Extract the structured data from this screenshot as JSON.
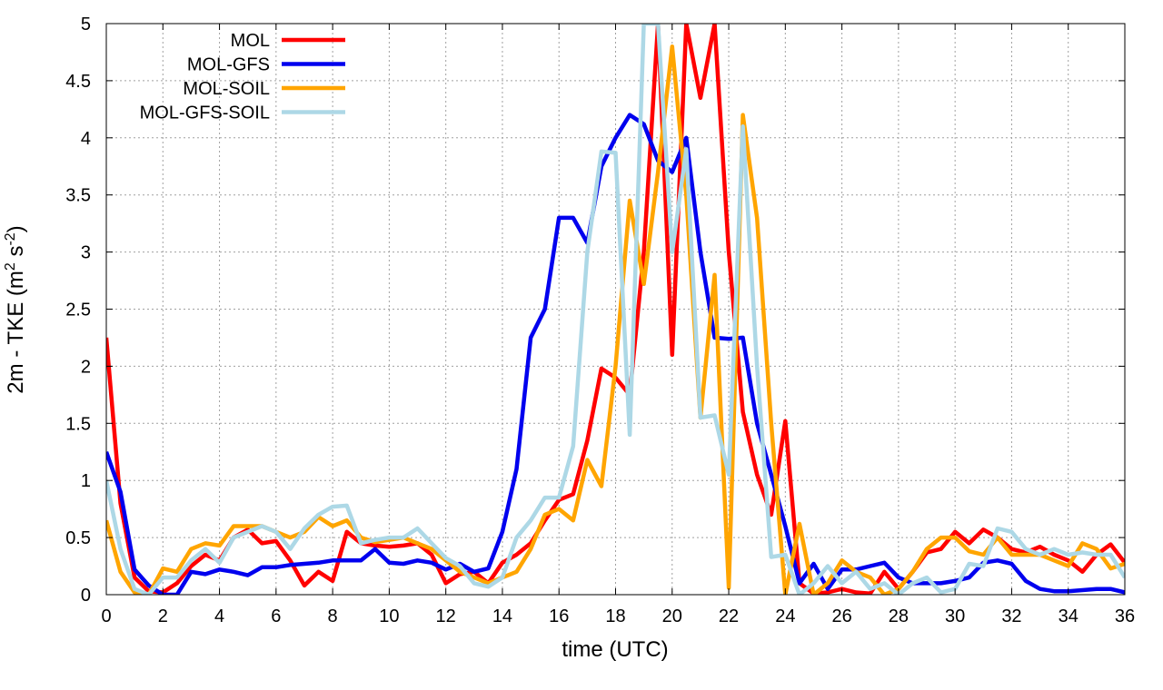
{
  "chart_data": {
    "type": "line",
    "title": "",
    "xlabel": "time (UTC)",
    "ylabel_prefix": "2m - TKE (m",
    "ylabel_sup1": "2",
    "ylabel_mid": " s",
    "ylabel_sup2": "-2",
    "ylabel_suffix": ")",
    "xlim": [
      0,
      36
    ],
    "ylim": [
      0,
      5
    ],
    "xticks": [
      0,
      2,
      4,
      6,
      8,
      10,
      12,
      14,
      16,
      18,
      20,
      22,
      24,
      26,
      28,
      30,
      32,
      34,
      36
    ],
    "yticks": [
      0,
      0.5,
      1,
      1.5,
      2,
      2.5,
      3,
      3.5,
      4,
      4.5,
      5
    ],
    "ytick_labels": [
      "0",
      "0.5",
      "1",
      "1.5",
      "2",
      "2.5",
      "3",
      "3.5",
      "4",
      "4.5",
      "5"
    ],
    "grid": true,
    "legend_position": "top-left",
    "series": [
      {
        "name": "MOL",
        "color": "#ff0000",
        "x": [
          0,
          0.5,
          1,
          1.5,
          2,
          2.5,
          3,
          3.5,
          4,
          4.5,
          5,
          5.5,
          6,
          6.5,
          7,
          7.5,
          8,
          8.5,
          9,
          9.5,
          10,
          10.5,
          11,
          11.5,
          12,
          12.5,
          13,
          13.5,
          14,
          14.5,
          15,
          15.5,
          16,
          16.5,
          17,
          17.5,
          18,
          18.5,
          19,
          19.5,
          20,
          20.5,
          21,
          21.5,
          22,
          22.5,
          23,
          23.5,
          24,
          24.5,
          25,
          25.5,
          26,
          26.5,
          27,
          27.5,
          28,
          28.5,
          29,
          29.5,
          30,
          30.5,
          31,
          31.5,
          32,
          32.5,
          33,
          33.5,
          34,
          34.5,
          35,
          35.5,
          36
        ],
        "values": [
          2.25,
          0.8,
          0.15,
          0.03,
          0.02,
          0.1,
          0.25,
          0.35,
          0.3,
          0.5,
          0.57,
          0.45,
          0.47,
          0.3,
          0.08,
          0.2,
          0.12,
          0.55,
          0.45,
          0.43,
          0.42,
          0.43,
          0.45,
          0.35,
          0.1,
          0.18,
          0.2,
          0.1,
          0.28,
          0.35,
          0.45,
          0.65,
          0.83,
          0.88,
          1.35,
          1.98,
          1.9,
          1.75,
          3.0,
          5.0,
          2.1,
          5.0,
          4.35,
          5.0,
          3.0,
          1.6,
          1.05,
          0.7,
          1.52,
          0.1,
          0.01,
          0.02,
          0.05,
          0.02,
          0.01,
          0.2,
          0.05,
          0.2,
          0.37,
          0.4,
          0.55,
          0.45,
          0.57,
          0.5,
          0.4,
          0.37,
          0.42,
          0.35,
          0.3,
          0.2,
          0.35,
          0.44,
          0.28
        ]
      },
      {
        "name": "MOL-GFS",
        "color": "#0000ee",
        "x": [
          0,
          0.5,
          1,
          1.5,
          2,
          2.5,
          3,
          3.5,
          4,
          4.5,
          5,
          5.5,
          6,
          6.5,
          7,
          7.5,
          8,
          8.5,
          9,
          9.5,
          10,
          10.5,
          11,
          11.5,
          12,
          12.5,
          13,
          13.5,
          14,
          14.5,
          15,
          15.5,
          16,
          16.5,
          17,
          17.5,
          18,
          18.5,
          19,
          19.5,
          20,
          20.5,
          21,
          21.5,
          22,
          22.5,
          23,
          23.5,
          24,
          24.5,
          25,
          25.5,
          26,
          26.5,
          27,
          27.5,
          28,
          28.5,
          29,
          29.5,
          30,
          30.5,
          31,
          31.5,
          32,
          32.5,
          33,
          33.5,
          34,
          34.5,
          35,
          35.5,
          36
        ],
        "values": [
          1.25,
          0.9,
          0.22,
          0.08,
          0.0,
          0.0,
          0.2,
          0.18,
          0.22,
          0.2,
          0.17,
          0.24,
          0.24,
          0.26,
          0.27,
          0.28,
          0.3,
          0.3,
          0.3,
          0.4,
          0.28,
          0.27,
          0.3,
          0.28,
          0.22,
          0.27,
          0.2,
          0.23,
          0.55,
          1.1,
          2.25,
          2.5,
          3.3,
          3.3,
          3.08,
          3.75,
          4.0,
          4.2,
          4.12,
          3.8,
          3.7,
          4.0,
          3.0,
          2.25,
          2.24,
          2.25,
          1.5,
          1.05,
          0.6,
          0.1,
          0.27,
          0.05,
          0.22,
          0.22,
          0.25,
          0.28,
          0.15,
          0.1,
          0.1,
          0.1,
          0.12,
          0.15,
          0.28,
          0.3,
          0.27,
          0.12,
          0.05,
          0.03,
          0.03,
          0.04,
          0.05,
          0.05,
          0.02
        ]
      },
      {
        "name": "MOL-SOIL",
        "color": "#ffa500",
        "x": [
          0,
          0.5,
          1,
          1.5,
          2,
          2.5,
          3,
          3.5,
          4,
          4.5,
          5,
          5.5,
          6,
          6.5,
          7,
          7.5,
          8,
          8.5,
          9,
          9.5,
          10,
          10.5,
          11,
          11.5,
          12,
          12.5,
          13,
          13.5,
          14,
          14.5,
          15,
          15.5,
          16,
          16.5,
          17,
          17.5,
          18,
          18.5,
          19,
          19.5,
          20,
          20.5,
          21,
          21.5,
          22,
          22.5,
          23,
          23.5,
          24,
          24.5,
          25,
          25.5,
          26,
          26.5,
          27,
          27.5,
          28,
          28.5,
          29,
          29.5,
          30,
          30.5,
          31,
          31.5,
          32,
          32.5,
          33,
          33.5,
          34,
          34.5,
          35,
          35.5,
          36
        ],
        "values": [
          0.65,
          0.2,
          0.02,
          0.0,
          0.23,
          0.2,
          0.4,
          0.45,
          0.43,
          0.6,
          0.6,
          0.6,
          0.55,
          0.5,
          0.55,
          0.68,
          0.6,
          0.65,
          0.5,
          0.46,
          0.48,
          0.5,
          0.45,
          0.4,
          0.3,
          0.2,
          0.15,
          0.1,
          0.15,
          0.2,
          0.4,
          0.7,
          0.75,
          0.65,
          1.18,
          0.95,
          2.0,
          3.45,
          2.72,
          3.7,
          4.8,
          3.5,
          1.55,
          2.8,
          0.06,
          4.2,
          3.3,
          1.5,
          0.0,
          0.62,
          0.0,
          0.1,
          0.3,
          0.2,
          0.15,
          0.0,
          0.05,
          0.2,
          0.4,
          0.5,
          0.5,
          0.38,
          0.35,
          0.5,
          0.35,
          0.35,
          0.35,
          0.3,
          0.25,
          0.45,
          0.4,
          0.23,
          0.27
        ]
      },
      {
        "name": "MOL-GFS-SOIL",
        "color": "#add8e6",
        "x": [
          0,
          0.5,
          1,
          1.5,
          2,
          2.5,
          3,
          3.5,
          4,
          4.5,
          5,
          5.5,
          6,
          6.5,
          7,
          7.5,
          8,
          8.5,
          9,
          9.5,
          10,
          10.5,
          11,
          11.5,
          12,
          12.5,
          13,
          13.5,
          14,
          14.5,
          15,
          15.5,
          16,
          16.5,
          17,
          17.5,
          18,
          18.5,
          19,
          19.5,
          20,
          20.5,
          21,
          21.5,
          22,
          22.5,
          23,
          23.5,
          24,
          24.5,
          25,
          25.5,
          26,
          26.5,
          27,
          27.5,
          28,
          28.5,
          29,
          29.5,
          30,
          30.5,
          31,
          31.5,
          32,
          32.5,
          33,
          33.5,
          34,
          34.5,
          35,
          35.5,
          36
        ],
        "values": [
          1.0,
          0.4,
          0.05,
          0.0,
          0.15,
          0.15,
          0.3,
          0.4,
          0.28,
          0.5,
          0.55,
          0.6,
          0.55,
          0.4,
          0.58,
          0.7,
          0.77,
          0.78,
          0.45,
          0.48,
          0.5,
          0.5,
          0.58,
          0.45,
          0.32,
          0.25,
          0.1,
          0.07,
          0.15,
          0.5,
          0.65,
          0.85,
          0.85,
          1.3,
          3.0,
          3.88,
          3.87,
          1.4,
          5.0,
          5.0,
          3.0,
          3.9,
          1.55,
          1.57,
          1.05,
          4.1,
          2.0,
          0.33,
          0.35,
          0.0,
          0.1,
          0.25,
          0.1,
          0.2,
          0.05,
          0.1,
          0.0,
          0.1,
          0.15,
          0.02,
          0.05,
          0.27,
          0.25,
          0.58,
          0.55,
          0.4,
          0.35,
          0.4,
          0.35,
          0.37,
          0.35,
          0.35,
          0.15
        ]
      }
    ]
  }
}
